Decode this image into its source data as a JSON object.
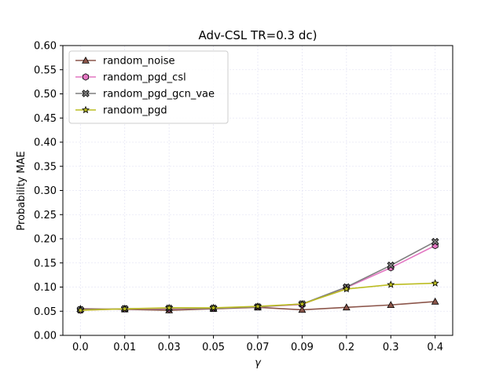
{
  "chart_data": {
    "type": "line",
    "title": "Adv-CSL TR=0.3 dc)",
    "xlabel": "γ",
    "ylabel": "Probability MAE",
    "categories": [
      "0.0",
      "0.01",
      "0.03",
      "0.05",
      "0.07",
      "0.09",
      "0.2",
      "0.3",
      "0.4"
    ],
    "ylim": [
      0.0,
      0.6
    ],
    "yticks": [
      "0.00",
      "0.05",
      "0.10",
      "0.15",
      "0.20",
      "0.25",
      "0.30",
      "0.35",
      "0.40",
      "0.45",
      "0.50",
      "0.55",
      "0.60"
    ],
    "grid": true,
    "legend_position": "upper-left",
    "series": [
      {
        "name": "random_noise",
        "color": "#8c564b",
        "marker": "triangle",
        "values": [
          0.055,
          0.054,
          0.052,
          0.055,
          0.058,
          0.053,
          0.058,
          0.063,
          0.07
        ]
      },
      {
        "name": "random_pgd_csl",
        "color": "#e377c2",
        "marker": "hexagon",
        "values": [
          0.052,
          0.055,
          0.055,
          0.056,
          0.059,
          0.064,
          0.099,
          0.14,
          0.186
        ]
      },
      {
        "name": "random_pgd_gcn_vae",
        "color": "#7f7f7f",
        "marker": "x",
        "values": [
          0.053,
          0.055,
          0.056,
          0.056,
          0.059,
          0.065,
          0.1,
          0.145,
          0.194
        ]
      },
      {
        "name": "random_pgd",
        "color": "#bcbd22",
        "marker": "star",
        "values": [
          0.052,
          0.055,
          0.057,
          0.057,
          0.06,
          0.065,
          0.096,
          0.105,
          0.108
        ]
      }
    ]
  }
}
